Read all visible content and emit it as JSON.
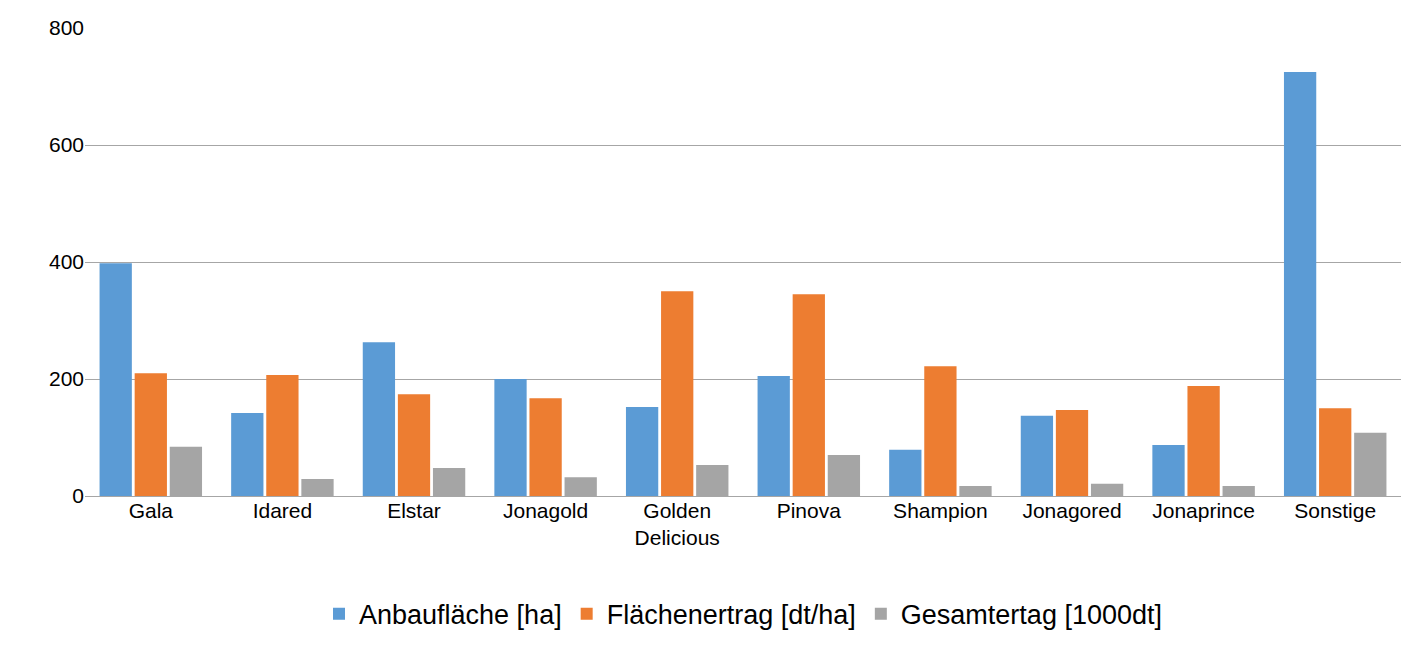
{
  "chart_data": {
    "type": "bar",
    "categories": [
      "Gala",
      "Idared",
      "Elstar",
      "Jonagold",
      "Golden Delicious",
      "Pinova",
      "Shampion",
      "Jonagored",
      "Jonaprince",
      "Sonstige"
    ],
    "series": [
      {
        "name": "Anbaufläche [ha]",
        "color": "#5b9bd5",
        "values": [
          398,
          142,
          263,
          200,
          152,
          205,
          79,
          137,
          87,
          725
        ]
      },
      {
        "name": "Flächenertrag [dt/ha]",
        "color": "#ed7d31",
        "values": [
          210,
          207,
          174,
          167,
          350,
          345,
          222,
          147,
          188,
          150
        ]
      },
      {
        "name": "Gesamtertag [1000dt]",
        "color": "#a5a5a5",
        "values": [
          84,
          29,
          48,
          32,
          53,
          70,
          17,
          21,
          17,
          108
        ]
      }
    ],
    "ylim": [
      0,
      800
    ],
    "yticks": [
      0,
      200,
      400,
      600,
      800
    ],
    "grid": true,
    "legend": "bottom"
  }
}
